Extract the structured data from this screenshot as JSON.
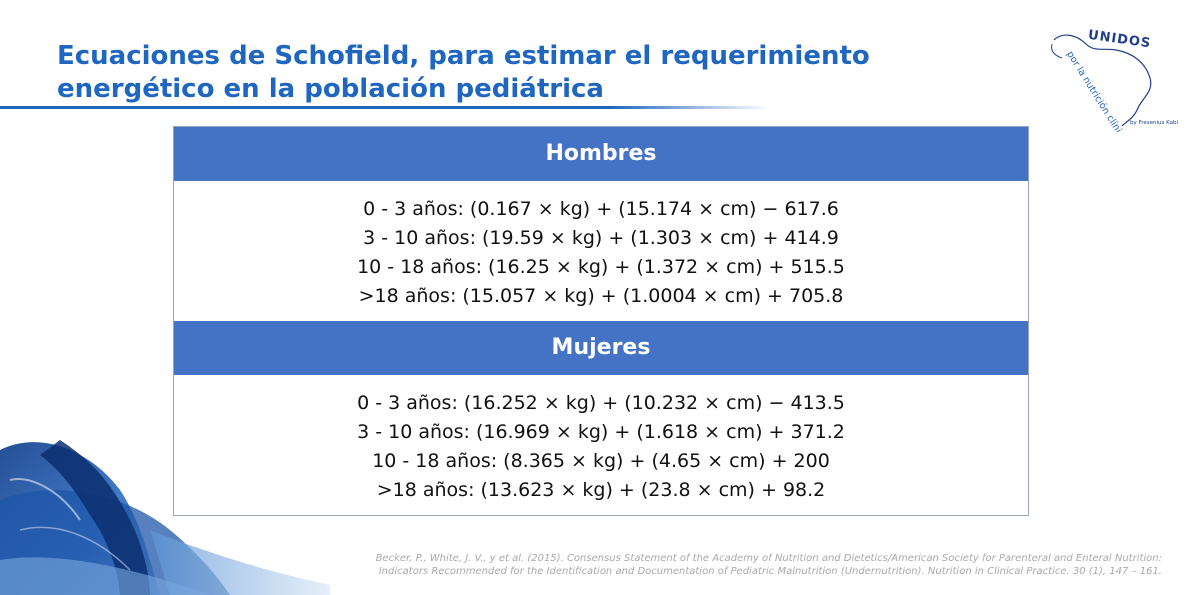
{
  "title": {
    "line1": "Ecuaciones de Schofield, para estimar el requerimiento",
    "line2": "energético en la población pediátrica"
  },
  "logo": {
    "word": "UNIDOS",
    "tagline": "por la nutrición clínica",
    "byline": "by Fresenius Kabi"
  },
  "table": {
    "sections": [
      {
        "header": "Hombres",
        "rows": [
          "0 - 3 años: (0.167 × kg) + (15.174 × cm) − 617.6",
          "3 - 10 años: (19.59 × kg) + (1.303 × cm) + 414.9",
          "10 - 18 años: (16.25 × kg) + (1.372 × cm) + 515.5",
          ">18 años: (15.057 × kg) + (1.0004 × cm) + 705.8"
        ]
      },
      {
        "header": "Mujeres",
        "rows": [
          "0 - 3 años: (16.252 × kg) + (10.232 × cm) − 413.5",
          "3 - 10 años: (16.969 × kg) + (1.618 × cm) + 371.2",
          "10 - 18 años: (8.365 × kg) + (4.65 × cm) + 200",
          ">18 años: (13.623 × kg) + (23.8 × cm) + 98.2"
        ]
      }
    ]
  },
  "citation": {
    "line1": "Becker, P., White, J. V., y et al. (2015). Consensus Statement of the Academy of Nutrition and Dietetics/American Society for Parenteral and Enteral Nutrition:",
    "line2": "Indicators Recommended for the Identification and Documentation of Pediatric Malnutrition (Undernutrition). Nutrition in Clinical Practice. 30 (1), 147 – 161."
  },
  "colors": {
    "title": "#1f66c1",
    "header_bg": "#4472c4",
    "header_text": "#ffffff",
    "body_text": "#111111",
    "citation": "#a9a9a9"
  }
}
